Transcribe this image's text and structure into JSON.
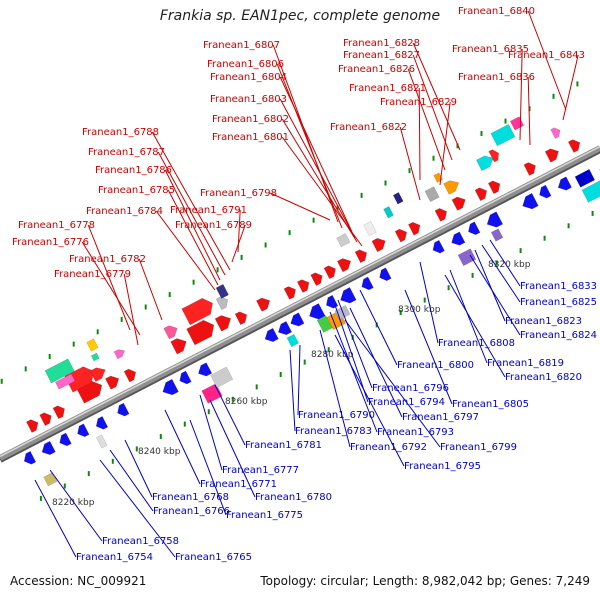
{
  "title": "Frankia sp. EAN1pec, complete genome",
  "footer": {
    "accession": "Accession: NC_009921",
    "summary": "Topology: circular; Length: 8,982,042 bp; Genes: 7,249"
  },
  "colors": {
    "forward_label": "#cc0000",
    "reverse_label": "#0000cc",
    "backbone": "#8f8f8f"
  },
  "ticks": [
    "8220 kbp",
    "8240 kbp",
    "8260 kbp",
    "8280 kbp",
    "8300 kbp",
    "8320 kbp"
  ],
  "forward_labels": [
    "Franean1_6840",
    "Franean1_6843",
    "Franean1_6835",
    "Franean1_6836",
    "Franean1_6828",
    "Franean1_6827",
    "Franean1_6826",
    "Franean1_6821",
    "Franean1_6829",
    "Franean1_6822",
    "Franean1_6807",
    "Franean1_6806",
    "Franean1_6804",
    "Franean1_6803",
    "Franean1_6802",
    "Franean1_6801",
    "Franean1_6798",
    "Franean1_6791",
    "Franean1_6789",
    "Franean1_6788",
    "Franean1_6787",
    "Franean1_6786",
    "Franean1_6785",
    "Franean1_6784",
    "Franean1_6778",
    "Franean1_6776",
    "Franean1_6782",
    "Franean1_6779"
  ],
  "reverse_labels": [
    "Franean1_6833",
    "Franean1_6825",
    "Franean1_6823",
    "Franean1_6824",
    "Franean1_6808",
    "Franean1_6819",
    "Franean1_6820",
    "Franean1_6800",
    "Franean1_6805",
    "Franean1_6796",
    "Franean1_6794",
    "Franean1_6797",
    "Franean1_6790",
    "Franean1_6793",
    "Franean1_6783",
    "Franean1_6799",
    "Franean1_6781",
    "Franean1_6792",
    "Franean1_6795",
    "Franean1_6777",
    "Franean1_6771",
    "Franean1_6780",
    "Franean1_6768",
    "Franean1_6766",
    "Franean1_6775",
    "Franean1_6758",
    "Franean1_6754",
    "Franean1_6765"
  ]
}
